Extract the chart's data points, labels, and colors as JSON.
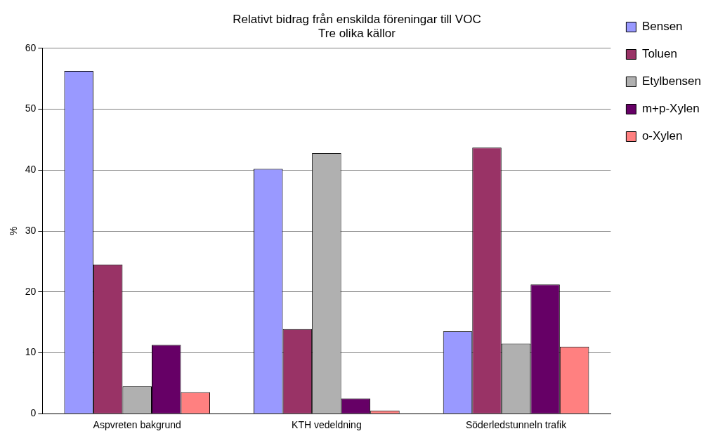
{
  "chart_data": {
    "type": "bar",
    "title": [
      "Relativt bidrag från enskilda föreningar till VOC",
      "Tre olika källor"
    ],
    "ylabel": "%",
    "categories": [
      "Aspvreten bakgrund",
      "KTH vedeldning",
      "Söderledstunneln trafik"
    ],
    "series": [
      {
        "name": "Bensen",
        "color": "#9999ff",
        "values": [
          56.3,
          40.2,
          13.5
        ]
      },
      {
        "name": "Toluen",
        "color": "#993366",
        "values": [
          24.5,
          13.9,
          43.7
        ]
      },
      {
        "name": "Etylbensen",
        "color": "#b0b0b0",
        "values": [
          4.5,
          42.8,
          11.5
        ]
      },
      {
        "name": "m+p-Xylen",
        "color": "#660066",
        "values": [
          11.3,
          2.5,
          21.2
        ]
      },
      {
        "name": "o-Xylen",
        "color": "#ff8080",
        "values": [
          3.5,
          0.5,
          11.0
        ]
      }
    ],
    "ylim": [
      0,
      60
    ],
    "yticks": [
      0,
      10,
      20,
      30,
      40,
      50,
      60
    ],
    "grid": "y",
    "legend": "top right"
  }
}
